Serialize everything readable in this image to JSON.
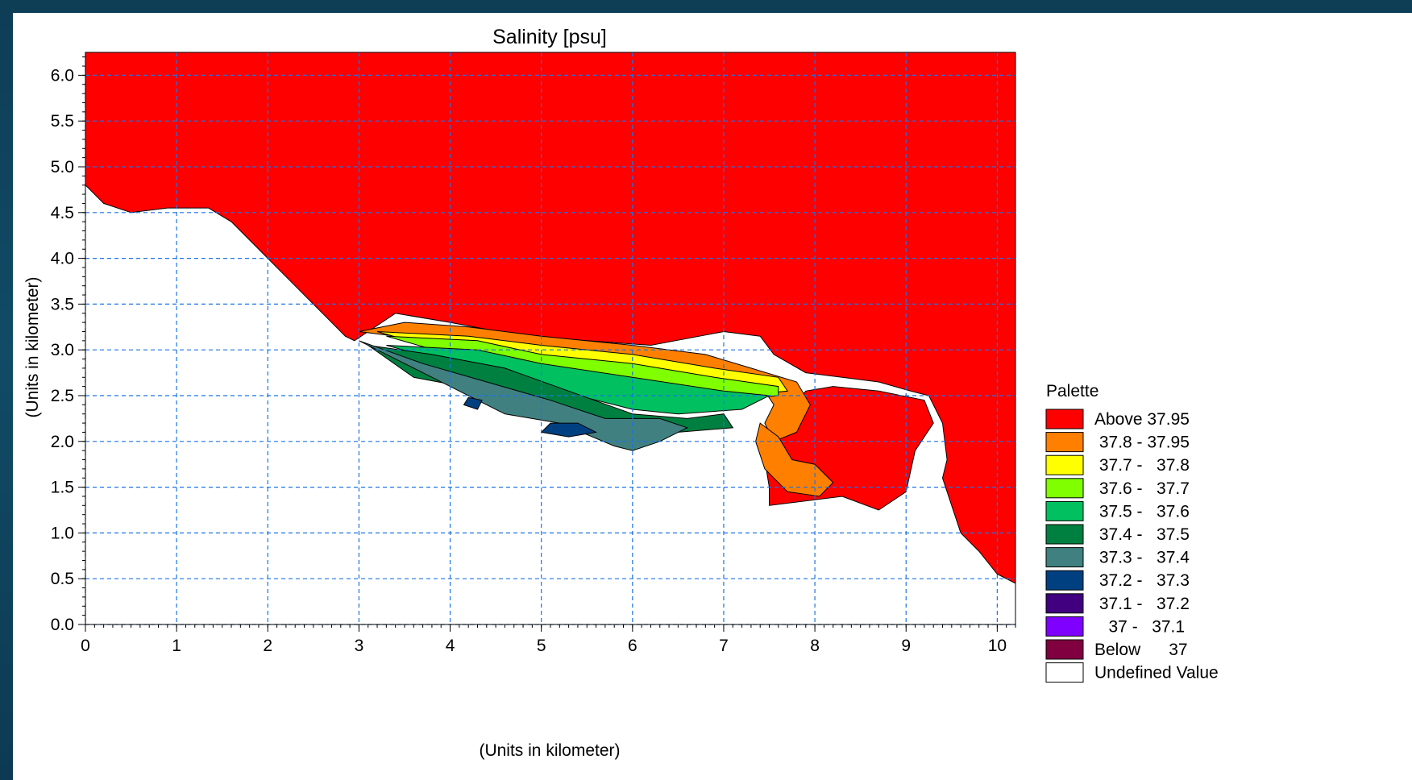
{
  "chart_data": {
    "type": "heatmap",
    "title": "Salinity [psu]",
    "xlabel": "(Units in kilometer)",
    "ylabel": "(Units in kilometer)",
    "xlim": [
      0,
      10.2
    ],
    "ylim": [
      0,
      6.25
    ],
    "xticks": [
      "0",
      "1",
      "2",
      "3",
      "4",
      "5",
      "6",
      "7",
      "8",
      "9",
      "10"
    ],
    "yticks": [
      "0.0",
      "0.5",
      "1.0",
      "1.5",
      "2.0",
      "2.5",
      "3.0",
      "3.5",
      "4.0",
      "4.5",
      "5.0",
      "5.5",
      "6.0"
    ],
    "grid": true,
    "legend_position": "right",
    "legend": {
      "title": "Palette",
      "entries": [
        {
          "label": "Above 37.95",
          "color": "#ff0000"
        },
        {
          "label": " 37.8 - 37.95",
          "color": "#ff8000"
        },
        {
          "label": " 37.7 -   37.8",
          "color": "#ffff00"
        },
        {
          "label": " 37.6 -   37.7",
          "color": "#80ff00"
        },
        {
          "label": " 37.5 -   37.6",
          "color": "#00c060"
        },
        {
          "label": " 37.4 -   37.5",
          "color": "#008040"
        },
        {
          "label": " 37.3 -   37.4",
          "color": "#408080"
        },
        {
          "label": " 37.2 -   37.3",
          "color": "#004080"
        },
        {
          "label": " 37.1 -   37.2",
          "color": "#400080"
        },
        {
          "label": "   37 -   37.1",
          "color": "#8000ff"
        },
        {
          "label": "Below      37",
          "color": "#800040"
        },
        {
          "label": "Undefined Value",
          "color": "#ffffff"
        }
      ]
    },
    "regions": [
      {
        "class": "Above 37.95",
        "color": "#ff0000",
        "points": [
          [
            0,
            6.25
          ],
          [
            10.2,
            6.25
          ],
          [
            10.2,
            0.45
          ],
          [
            10.0,
            0.55
          ],
          [
            9.8,
            0.8
          ],
          [
            9.6,
            1.0
          ],
          [
            9.5,
            1.3
          ],
          [
            9.4,
            1.6
          ],
          [
            9.45,
            1.8
          ],
          [
            9.4,
            2.2
          ],
          [
            9.25,
            2.5
          ],
          [
            9.05,
            2.55
          ],
          [
            8.7,
            2.65
          ],
          [
            8.3,
            2.7
          ],
          [
            7.9,
            2.75
          ],
          [
            7.55,
            2.95
          ],
          [
            7.4,
            3.15
          ],
          [
            7.0,
            3.2
          ],
          [
            6.2,
            3.05
          ],
          [
            5.5,
            3.1
          ],
          [
            4.8,
            3.15
          ],
          [
            4.0,
            3.3
          ],
          [
            3.4,
            3.4
          ],
          [
            2.95,
            3.1
          ],
          [
            2.85,
            3.15
          ],
          [
            2.6,
            3.4
          ],
          [
            2.3,
            3.7
          ],
          [
            1.95,
            4.05
          ],
          [
            1.6,
            4.4
          ],
          [
            1.35,
            4.55
          ],
          [
            0.9,
            4.55
          ],
          [
            0.5,
            4.5
          ],
          [
            0.2,
            4.6
          ],
          [
            0,
            4.8
          ]
        ]
      },
      {
        "class": "Above 37.95",
        "color": "#ff0000",
        "points": [
          [
            7.5,
            1.3
          ],
          [
            8.3,
            1.4
          ],
          [
            8.7,
            1.25
          ],
          [
            9.0,
            1.45
          ],
          [
            9.1,
            1.9
          ],
          [
            9.3,
            2.2
          ],
          [
            9.2,
            2.45
          ],
          [
            8.7,
            2.55
          ],
          [
            8.2,
            2.6
          ],
          [
            7.9,
            2.55
          ],
          [
            7.6,
            2.2
          ],
          [
            7.45,
            1.8
          ],
          [
            7.5,
            1.5
          ]
        ]
      },
      {
        "class": "37.8 - 37.95",
        "color": "#ff8000",
        "points": [
          [
            3.0,
            3.2
          ],
          [
            3.5,
            3.3
          ],
          [
            4.2,
            3.25
          ],
          [
            5.0,
            3.15
          ],
          [
            6.0,
            3.05
          ],
          [
            6.8,
            2.95
          ],
          [
            7.3,
            2.8
          ],
          [
            7.8,
            2.65
          ],
          [
            7.95,
            2.4
          ],
          [
            7.8,
            2.1
          ],
          [
            7.55,
            2.0
          ],
          [
            7.45,
            2.2
          ],
          [
            7.55,
            2.4
          ],
          [
            7.45,
            2.55
          ],
          [
            7.0,
            2.55
          ],
          [
            6.0,
            2.75
          ],
          [
            4.8,
            2.95
          ],
          [
            3.8,
            3.1
          ]
        ]
      },
      {
        "class": "37.8 - 37.95",
        "color": "#ff8000",
        "points": [
          [
            7.4,
            2.2
          ],
          [
            7.6,
            2.05
          ],
          [
            7.75,
            1.8
          ],
          [
            8.0,
            1.75
          ],
          [
            8.2,
            1.55
          ],
          [
            8.05,
            1.4
          ],
          [
            7.7,
            1.45
          ],
          [
            7.45,
            1.7
          ],
          [
            7.35,
            2.0
          ]
        ]
      },
      {
        "class": "37.7 - 37.8",
        "color": "#ffff00",
        "points": [
          [
            3.2,
            3.2
          ],
          [
            4.2,
            3.15
          ],
          [
            5.0,
            3.05
          ],
          [
            6.0,
            2.95
          ],
          [
            6.9,
            2.8
          ],
          [
            7.6,
            2.7
          ],
          [
            7.7,
            2.55
          ],
          [
            7.2,
            2.5
          ],
          [
            6.0,
            2.65
          ],
          [
            4.9,
            2.85
          ],
          [
            3.9,
            3.0
          ]
        ]
      },
      {
        "class": "37.6 - 37.7",
        "color": "#80ff00",
        "points": [
          [
            3.3,
            3.15
          ],
          [
            4.3,
            3.1
          ],
          [
            5.0,
            2.95
          ],
          [
            6.0,
            2.85
          ],
          [
            6.9,
            2.7
          ],
          [
            7.6,
            2.6
          ],
          [
            7.6,
            2.5
          ],
          [
            7.0,
            2.45
          ],
          [
            6.0,
            2.55
          ],
          [
            5.0,
            2.75
          ],
          [
            4.0,
            2.95
          ]
        ]
      },
      {
        "class": "37.5 - 37.6",
        "color": "#00c060",
        "points": [
          [
            3.3,
            3.05
          ],
          [
            4.3,
            3.0
          ],
          [
            5.0,
            2.85
          ],
          [
            6.0,
            2.7
          ],
          [
            7.0,
            2.55
          ],
          [
            7.5,
            2.5
          ],
          [
            7.2,
            2.35
          ],
          [
            6.5,
            2.3
          ],
          [
            6.0,
            2.35
          ],
          [
            5.2,
            2.55
          ],
          [
            4.2,
            2.8
          ]
        ]
      },
      {
        "class": "37.4 - 37.5",
        "color": "#008040",
        "points": [
          [
            3.1,
            3.05
          ],
          [
            3.8,
            2.95
          ],
          [
            4.6,
            2.8
          ],
          [
            5.3,
            2.55
          ],
          [
            6.0,
            2.3
          ],
          [
            6.6,
            2.25
          ],
          [
            7.0,
            2.3
          ],
          [
            7.1,
            2.15
          ],
          [
            6.5,
            2.1
          ],
          [
            6.0,
            2.05
          ],
          [
            5.2,
            2.3
          ],
          [
            4.4,
            2.55
          ],
          [
            3.6,
            2.7
          ]
        ]
      },
      {
        "class": "37.3 - 37.4",
        "color": "#408080",
        "points": [
          [
            3.0,
            3.1
          ],
          [
            3.5,
            2.85
          ],
          [
            4.1,
            2.55
          ],
          [
            4.6,
            2.3
          ],
          [
            5.2,
            2.2
          ],
          [
            5.8,
            1.95
          ],
          [
            6.0,
            1.9
          ],
          [
            6.3,
            2.0
          ],
          [
            6.6,
            2.15
          ],
          [
            6.3,
            2.25
          ],
          [
            5.7,
            2.25
          ],
          [
            5.1,
            2.45
          ],
          [
            4.4,
            2.65
          ],
          [
            3.7,
            2.85
          ]
        ]
      },
      {
        "class": "37.2 - 37.3",
        "color": "#004080",
        "points": [
          [
            5.0,
            2.1
          ],
          [
            5.3,
            2.05
          ],
          [
            5.6,
            2.1
          ],
          [
            5.4,
            2.2
          ],
          [
            5.1,
            2.2
          ]
        ]
      },
      {
        "class": "37.2 - 37.3",
        "color": "#004080",
        "points": [
          [
            4.15,
            2.4
          ],
          [
            4.3,
            2.35
          ],
          [
            4.35,
            2.45
          ],
          [
            4.2,
            2.48
          ]
        ]
      }
    ]
  }
}
